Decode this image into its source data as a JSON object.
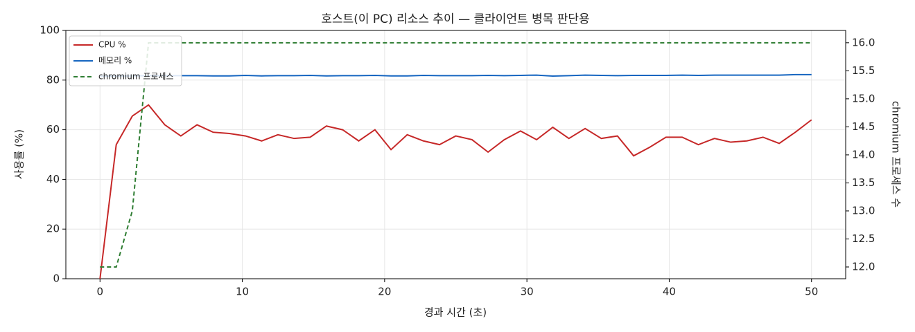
{
  "chart_data": {
    "type": "line",
    "title": "호스트(이 PC) 리소스 추이 — 클라이언트 병목 판단용",
    "x_label": "경과 시간 (초)",
    "y_label": "사용률 (%)",
    "y2_label": "chromium 프로세스 수",
    "x": [
      0,
      1.14,
      2.27,
      3.41,
      4.55,
      5.68,
      6.82,
      7.95,
      9.09,
      10.23,
      11.36,
      12.5,
      13.64,
      14.77,
      15.91,
      17.05,
      18.18,
      19.32,
      20.45,
      21.59,
      22.73,
      23.86,
      25,
      26.14,
      27.27,
      28.41,
      29.55,
      30.68,
      31.82,
      32.95,
      34.09,
      35.23,
      36.36,
      37.5,
      38.64,
      39.77,
      40.91,
      42.05,
      43.18,
      44.32,
      45.45,
      46.59,
      47.73,
      48.86,
      50
    ],
    "series": [
      {
        "name": "CPU %",
        "color": "#c62828",
        "dash": false,
        "values": [
          0,
          54,
          65.5,
          70,
          62,
          57.5,
          62,
          59,
          58.5,
          57.5,
          55.5,
          58,
          56.5,
          57,
          61.5,
          60,
          55.5,
          60,
          52,
          58,
          55.5,
          54,
          57.5,
          56,
          51,
          56,
          59.5,
          56,
          61,
          56.5,
          60.5,
          56.5,
          57.5,
          49.5,
          53,
          57,
          57,
          54,
          56.5,
          55,
          55.5,
          57,
          54.5,
          59,
          64
        ]
      },
      {
        "name": "메모리 %",
        "color": "#1565c0",
        "dash": false,
        "values": [
          81.5,
          81.6,
          81.7,
          81.8,
          81.8,
          81.8,
          81.8,
          81.7,
          81.7,
          81.9,
          81.7,
          81.8,
          81.8,
          81.9,
          81.7,
          81.8,
          81.8,
          81.9,
          81.7,
          81.7,
          81.9,
          81.8,
          81.8,
          81.8,
          81.9,
          81.8,
          81.9,
          82,
          81.6,
          81.8,
          82,
          81.9,
          81.8,
          81.9,
          81.9,
          81.9,
          82,
          81.9,
          82,
          82,
          82,
          82,
          82,
          82.2,
          82.2
        ]
      },
      {
        "name": "chromium 프로세스",
        "color": "#2e7d32",
        "dash": true,
        "axis": "y2",
        "values": [
          12,
          12,
          13,
          16,
          16,
          16,
          16,
          16,
          16,
          16,
          16,
          16,
          16,
          16,
          16,
          16,
          16,
          16,
          16,
          16,
          16,
          16,
          16,
          16,
          16,
          16,
          16,
          16,
          16,
          16,
          16,
          16,
          16,
          16,
          16,
          16,
          16,
          16,
          16,
          16,
          16,
          16,
          16,
          16,
          16
        ]
      }
    ],
    "xlim": [
      -2.4,
      52.4
    ],
    "xticks": [
      0,
      10,
      20,
      30,
      40,
      50
    ],
    "ylim": [
      0,
      100
    ],
    "yticks": [
      0,
      20,
      40,
      60,
      80,
      100
    ],
    "y2lim": [
      11.79,
      16.22
    ],
    "y2ticks": [
      {
        "value": 12,
        "label": "12.0"
      },
      {
        "value": 12.5,
        "label": "12.5"
      },
      {
        "value": 13,
        "label": "13.0"
      },
      {
        "value": 13.5,
        "label": "13.5"
      },
      {
        "value": 14,
        "label": "14.0"
      },
      {
        "value": 14.5,
        "label": "14.5"
      },
      {
        "value": 15,
        "label": "15.0"
      },
      {
        "value": 15.5,
        "label": "15.5"
      },
      {
        "value": 16,
        "label": "16.0"
      }
    ],
    "grid": true,
    "legend": "upper-left"
  }
}
